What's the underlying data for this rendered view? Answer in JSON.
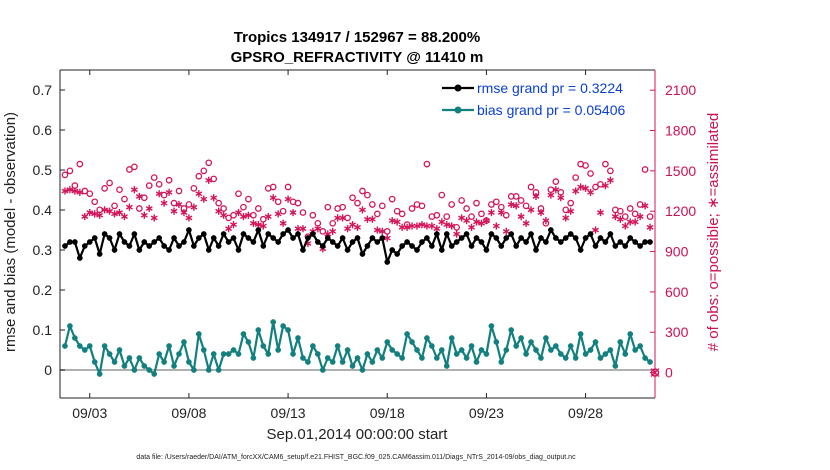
{
  "chart_data": {
    "type": "line",
    "title_line1": "Tropics 134917 / 152967 = 88.200%",
    "title_line2": "GPSRO_REFRACTIVITY @ 11410 m",
    "xlabel": "Sep.01,2014 00:00:00 start",
    "ylabel": "rmse and bias (model - observation)",
    "ylabel_right": "# of obs: o=possible; ∗=assimilated",
    "footnote": "data file: /Users/raeder/DAI/ATM_forcXX/CAM6_setup/f.e21.FHIST_BGC.f09_025.CAM6assim.011/Diags_NTrS_2014-09/obs_diag_output.nc",
    "xlim": [
      1.5,
      31.5
    ],
    "ylim": [
      -0.07,
      0.75
    ],
    "ylim_right": [
      -189,
      2250
    ],
    "x_ticks": [
      3,
      8,
      13,
      18,
      23,
      28
    ],
    "x_tick_labels": [
      "09/03",
      "09/08",
      "09/13",
      "09/18",
      "09/23",
      "09/28"
    ],
    "y_ticks": [
      0,
      0.1,
      0.2,
      0.3,
      0.4,
      0.5,
      0.6,
      0.7
    ],
    "y_tick_labels": [
      "0",
      "0.1",
      "0.2",
      "0.3",
      "0.4",
      "0.5",
      "0.6",
      "0.7"
    ],
    "y_right_ticks": [
      0,
      300,
      600,
      900,
      1200,
      1500,
      1800,
      2100
    ],
    "y_right_tick_labels": [
      "0",
      "300",
      "600",
      "900",
      "1200",
      "1500",
      "1800",
      "2100"
    ],
    "colors": {
      "rmse": "#000000",
      "bias": "#138080",
      "obs": "#d4145a",
      "zero_line": "#b0b0b0"
    },
    "legend": {
      "position": "top-right",
      "entries": [
        "rmse grand pr = 0.3224",
        "bias grand pr = 0.05406"
      ]
    },
    "x": [
      1.75,
      2.0,
      2.25,
      2.5,
      2.75,
      3.0,
      3.25,
      3.5,
      3.75,
      4.0,
      4.25,
      4.5,
      4.75,
      5.0,
      5.25,
      5.5,
      5.75,
      6.0,
      6.25,
      6.5,
      6.75,
      7.0,
      7.25,
      7.5,
      7.75,
      8.0,
      8.25,
      8.5,
      8.75,
      9.0,
      9.25,
      9.5,
      9.75,
      10.0,
      10.25,
      10.5,
      10.75,
      11.0,
      11.25,
      11.5,
      11.75,
      12.0,
      12.25,
      12.5,
      12.75,
      13.0,
      13.25,
      13.5,
      13.75,
      14.0,
      14.25,
      14.5,
      14.75,
      15.0,
      15.25,
      15.5,
      15.75,
      16.0,
      16.25,
      16.5,
      16.75,
      17.0,
      17.25,
      17.5,
      17.75,
      18.0,
      18.25,
      18.5,
      18.75,
      19.0,
      19.25,
      19.5,
      19.75,
      20.0,
      20.25,
      20.5,
      20.75,
      21.0,
      21.25,
      21.5,
      21.75,
      22.0,
      22.25,
      22.5,
      22.75,
      23.0,
      23.25,
      23.5,
      23.75,
      24.0,
      24.25,
      24.5,
      24.75,
      25.0,
      25.25,
      25.5,
      25.75,
      26.0,
      26.25,
      26.5,
      26.75,
      27.0,
      27.25,
      27.5,
      27.75,
      28.0,
      28.25,
      28.5,
      28.75,
      29.0,
      29.25,
      29.5,
      29.75,
      30.0,
      30.25,
      30.5,
      30.75,
      31.0,
      31.25
    ],
    "series": [
      {
        "name": "rmse",
        "axis": "left",
        "marker": "dot",
        "values": [
          0.31,
          0.32,
          0.32,
          0.28,
          0.31,
          0.32,
          0.33,
          0.29,
          0.34,
          0.33,
          0.3,
          0.34,
          0.32,
          0.31,
          0.34,
          0.3,
          0.32,
          0.31,
          0.32,
          0.33,
          0.31,
          0.3,
          0.33,
          0.31,
          0.32,
          0.35,
          0.31,
          0.33,
          0.34,
          0.3,
          0.33,
          0.31,
          0.34,
          0.32,
          0.33,
          0.3,
          0.34,
          0.33,
          0.32,
          0.35,
          0.31,
          0.34,
          0.33,
          0.32,
          0.34,
          0.35,
          0.33,
          0.34,
          0.3,
          0.33,
          0.34,
          0.32,
          0.31,
          0.33,
          0.32,
          0.31,
          0.33,
          0.3,
          0.32,
          0.33,
          0.29,
          0.31,
          0.33,
          0.32,
          0.33,
          0.27,
          0.3,
          0.29,
          0.31,
          0.32,
          0.31,
          0.3,
          0.32,
          0.33,
          0.31,
          0.34,
          0.3,
          0.34,
          0.31,
          0.32,
          0.33,
          0.34,
          0.31,
          0.33,
          0.32,
          0.3,
          0.34,
          0.33,
          0.31,
          0.33,
          0.34,
          0.31,
          0.33,
          0.32,
          0.34,
          0.3,
          0.33,
          0.32,
          0.35,
          0.33,
          0.32,
          0.33,
          0.34,
          0.33,
          0.3,
          0.33,
          0.34,
          0.31,
          0.33,
          0.32,
          0.34,
          0.31,
          0.32,
          0.31,
          0.33,
          0.32,
          0.31,
          0.32,
          0.32
        ]
      },
      {
        "name": "bias",
        "axis": "left",
        "marker": "dot",
        "values": [
          0.06,
          0.11,
          0.08,
          0.06,
          0.05,
          0.06,
          0.02,
          -0.01,
          0.06,
          0.04,
          0.02,
          0.05,
          0.01,
          0.03,
          0.0,
          0.03,
          0.01,
          0.0,
          -0.01,
          0.04,
          0.02,
          0.06,
          0.01,
          0.04,
          0.07,
          0.02,
          0.0,
          0.09,
          0.05,
          0.0,
          0.04,
          0.0,
          0.04,
          0.04,
          0.05,
          0.04,
          0.09,
          0.07,
          0.03,
          0.1,
          0.06,
          0.04,
          0.12,
          0.05,
          0.11,
          0.1,
          0.04,
          0.08,
          0.03,
          0.02,
          0.06,
          0.04,
          0.0,
          0.03,
          0.02,
          0.06,
          0.02,
          0.05,
          0.01,
          0.03,
          0.0,
          0.04,
          0.02,
          0.05,
          0.03,
          0.07,
          0.05,
          0.04,
          0.03,
          0.09,
          0.07,
          0.05,
          0.03,
          0.08,
          0.06,
          0.03,
          0.05,
          0.01,
          0.08,
          0.04,
          0.05,
          0.03,
          0.06,
          0.02,
          0.05,
          0.04,
          0.11,
          0.07,
          0.02,
          0.05,
          0.1,
          0.06,
          0.08,
          0.04,
          0.07,
          0.05,
          0.03,
          0.08,
          0.05,
          0.06,
          0.04,
          0.03,
          0.06,
          0.03,
          0.09,
          0.04,
          0.05,
          0.07,
          0.03,
          0.04,
          0.05,
          0.01,
          0.07,
          0.04,
          0.09,
          0.05,
          0.06,
          0.03,
          0.02
        ]
      },
      {
        "name": "possible",
        "axis": "right",
        "marker": "circle",
        "values": [
          1470,
          1500,
          1390,
          1550,
          1350,
          1330,
          1270,
          1210,
          1370,
          1410,
          1240,
          1360,
          1290,
          1510,
          1530,
          1220,
          1300,
          1390,
          1450,
          1400,
          1320,
          1430,
          1260,
          1350,
          1220,
          1250,
          1370,
          1460,
          1500,
          1560,
          1440,
          1260,
          1220,
          1150,
          1170,
          1330,
          1230,
          1290,
          1170,
          1220,
          1140,
          1370,
          1380,
          1270,
          1200,
          1380,
          1270,
          1260,
          1190,
          1010,
          1170,
          1110,
          1050,
          1230,
          1110,
          1220,
          1230,
          1150,
          1300,
          1260,
          1350,
          1320,
          1250,
          1180,
          1240,
          1050,
          1290,
          1200,
          1180,
          1100,
          1220,
          1250,
          1240,
          1550,
          1160,
          1170,
          1320,
          1160,
          1250,
          1080,
          1280,
          1220,
          1160,
          1260,
          1180,
          1130,
          1250,
          1270,
          1230,
          1170,
          1310,
          1310,
          1280,
          1240,
          1380,
          1340,
          1220,
          1110,
          1360,
          1420,
          1340,
          1210,
          1260,
          1450,
          1550,
          1540,
          1480,
          1380,
          1400,
          1550,
          1500,
          1210,
          1200,
          1160,
          1220,
          1180,
          1250,
          1510,
          1160
        ]
      },
      {
        "name": "assimilated",
        "axis": "right",
        "marker": "star",
        "values": [
          1350,
          1360,
          1350,
          1340,
          1160,
          1190,
          1180,
          1170,
          1210,
          1200,
          1180,
          1190,
          1160,
          1230,
          1360,
          1310,
          1170,
          1220,
          1150,
          1330,
          1260,
          1340,
          1200,
          1250,
          1190,
          1150,
          1230,
          1330,
          1290,
          1430,
          1300,
          1200,
          1170,
          1070,
          1100,
          1190,
          1160,
          1170,
          1110,
          1100,
          1090,
          1160,
          1300,
          1180,
          1110,
          1290,
          1190,
          1070,
          1070,
          960,
          1050,
          1070,
          920,
          1030,
          1050,
          1150,
          1150,
          1070,
          1100,
          1080,
          1210,
          1140,
          1140,
          1060,
          1050,
          1000,
          1130,
          1120,
          1080,
          1080,
          1090,
          1090,
          1100,
          1090,
          1090,
          1070,
          1120,
          1100,
          1090,
          1030,
          1150,
          1130,
          1080,
          1120,
          1110,
          1130,
          1190,
          1090,
          1190,
          1050,
          1250,
          1240,
          1160,
          1110,
          1210,
          1310,
          1190,
          1130,
          1320,
          1360,
          1300,
          1150,
          1200,
          1350,
          1380,
          1370,
          1340,
          1060,
          1190,
          1390,
          1430,
          1160,
          1140,
          1090,
          1120,
          1120,
          1160,
          1240,
          1080
        ]
      }
    ]
  }
}
